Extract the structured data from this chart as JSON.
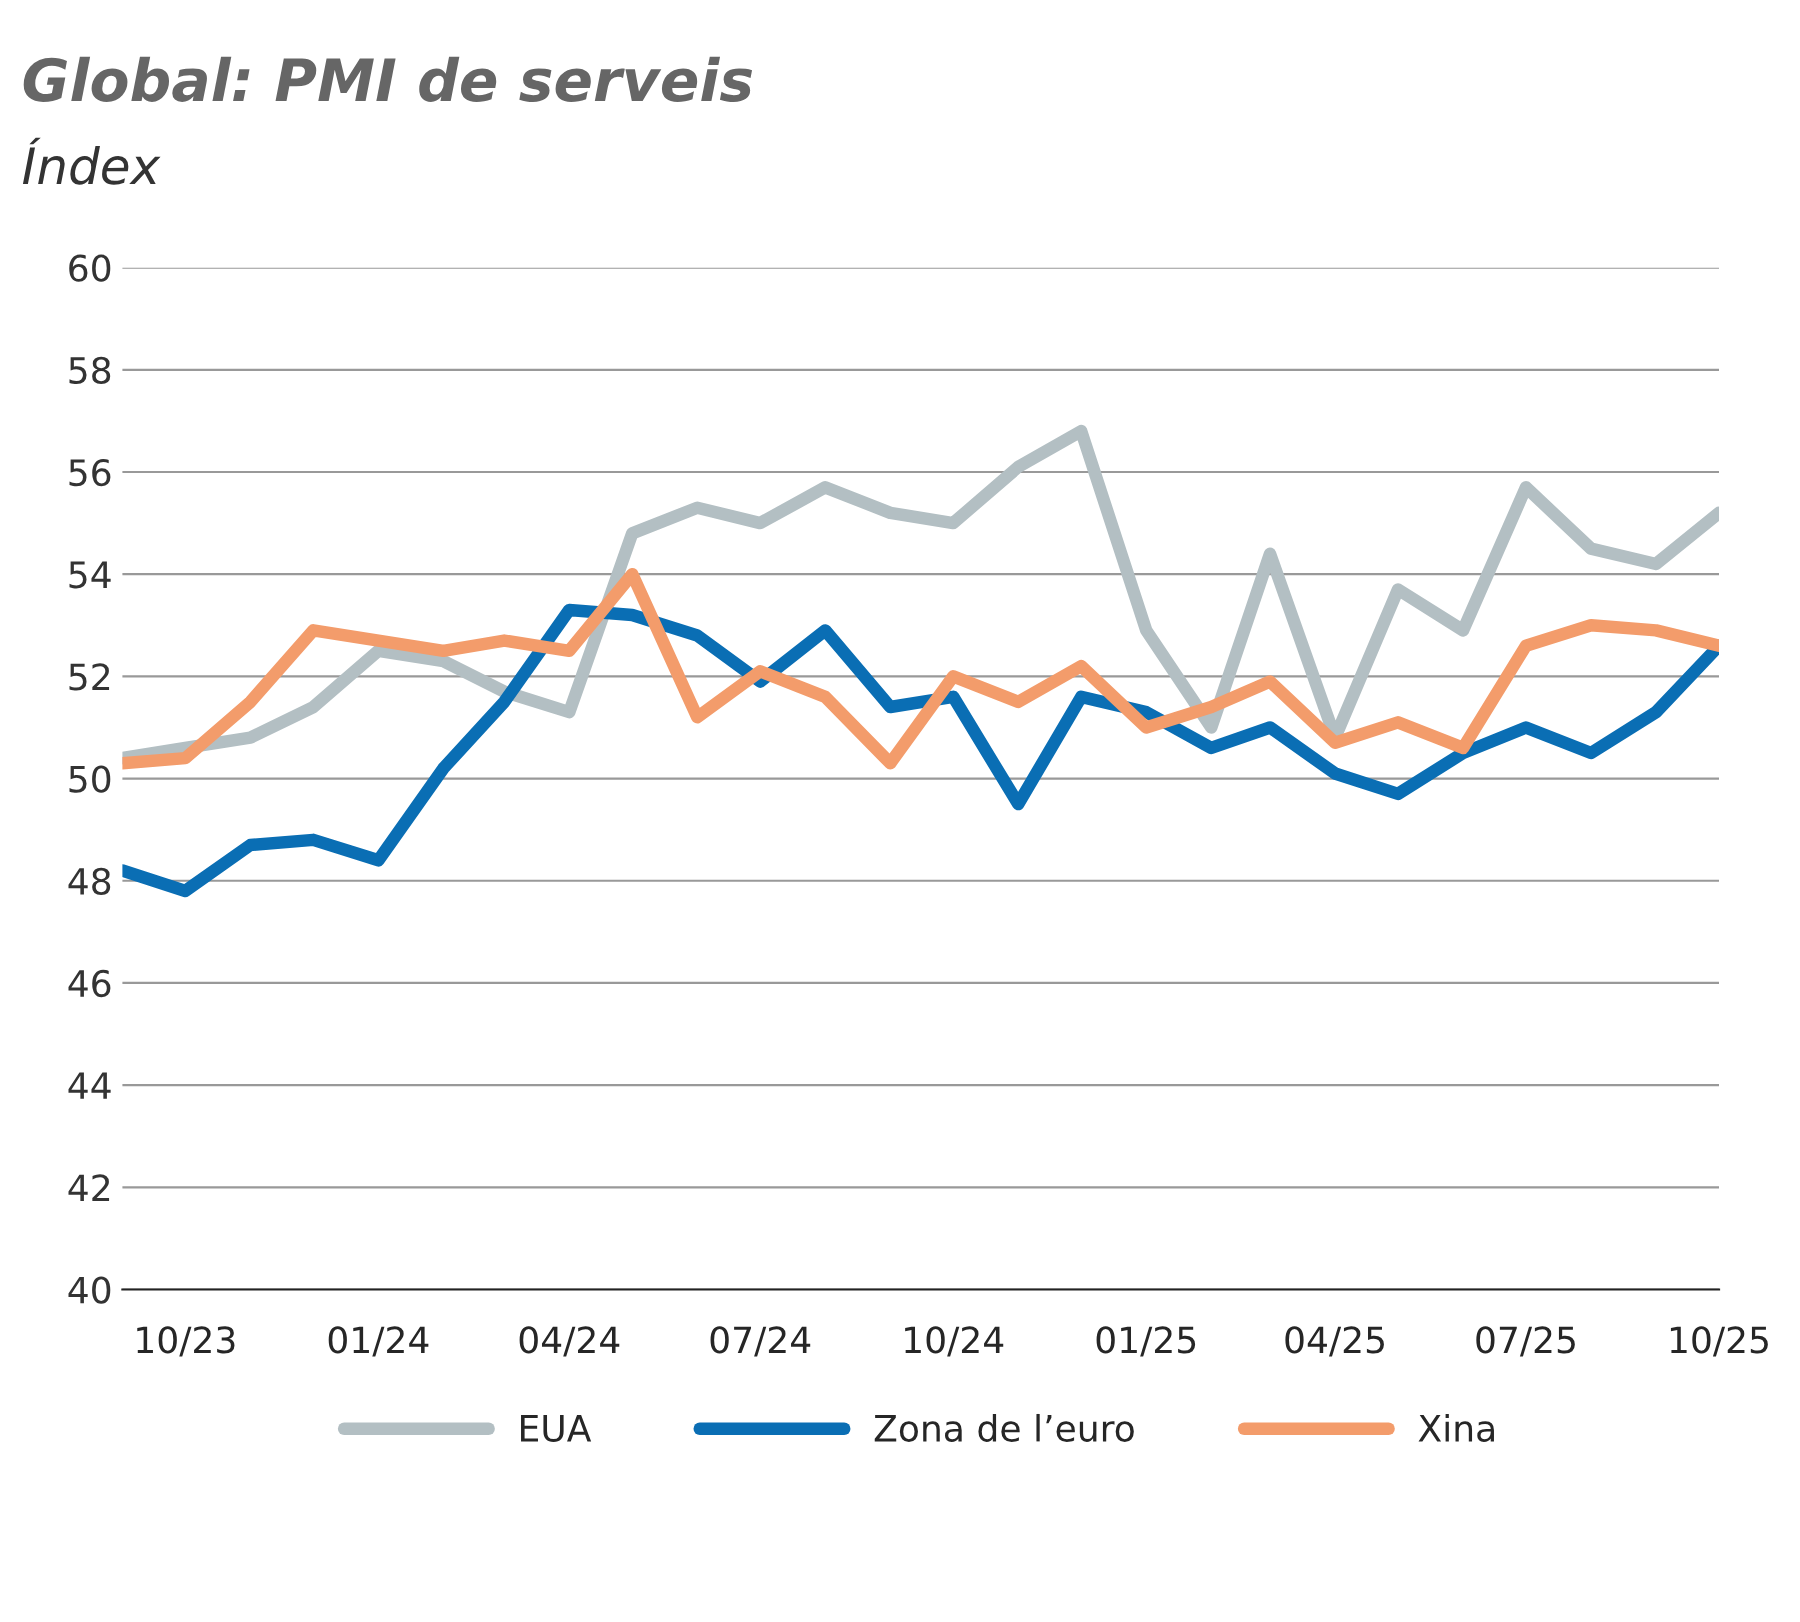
{
  "chart_data": {
    "type": "line",
    "title": "Global: PMI de serveis",
    "subtitle": "Índex",
    "x": [
      "2023-09",
      "2023-10",
      "2023-11",
      "2023-12",
      "2024-01",
      "2024-02",
      "2024-03",
      "2024-04",
      "2024-05",
      "2024-06",
      "2024-07",
      "2024-08",
      "2024-09",
      "2024-10",
      "2024-11",
      "2024-12",
      "2025-01",
      "2025-02",
      "2025-03",
      "2025-04",
      "2025-05",
      "2025-06",
      "2025-07",
      "2025-08",
      "2025-09",
      "2025-10"
    ],
    "series": [
      {
        "name": "EUA",
        "color": "#b3bfc3",
        "values": [
          50.4,
          50.6,
          50.8,
          51.4,
          52.5,
          52.3,
          51.7,
          51.3,
          54.8,
          55.3,
          55.0,
          55.7,
          55.2,
          55.0,
          56.1,
          56.8,
          52.9,
          51.0,
          54.4,
          50.8,
          53.7,
          52.9,
          55.7,
          54.5,
          54.2,
          55.2
        ]
      },
      {
        "name": "Zona de l’euro",
        "color": "#0a6eb4",
        "values": [
          48.2,
          47.8,
          48.7,
          48.8,
          48.4,
          50.2,
          51.5,
          53.3,
          53.2,
          52.8,
          51.9,
          52.9,
          51.4,
          51.6,
          49.5,
          51.6,
          51.3,
          50.6,
          51.0,
          50.1,
          49.7,
          50.5,
          51.0,
          50.5,
          51.3,
          52.6
        ]
      },
      {
        "name": "Xina",
        "color": "#f39c6b",
        "values": [
          50.3,
          50.4,
          51.5,
          52.9,
          52.7,
          52.5,
          52.7,
          52.5,
          54.0,
          51.2,
          52.1,
          51.6,
          50.3,
          52.0,
          51.5,
          52.2,
          51.0,
          51.4,
          51.9,
          50.7,
          51.1,
          50.6,
          52.6,
          53.0,
          52.9,
          52.6
        ]
      }
    ],
    "xlim": [
      "2023-09",
      "2025-10"
    ],
    "xticks": [
      {
        "value": "2023-10",
        "label": "10/23"
      },
      {
        "value": "2024-01",
        "label": "01/24"
      },
      {
        "value": "2024-04",
        "label": "04/24"
      },
      {
        "value": "2024-07",
        "label": "07/24"
      },
      {
        "value": "2024-10",
        "label": "10/24"
      },
      {
        "value": "2025-01",
        "label": "01/25"
      },
      {
        "value": "2025-04",
        "label": "04/25"
      },
      {
        "value": "2025-07",
        "label": "07/25"
      },
      {
        "value": "2025-10",
        "label": "10/25"
      }
    ],
    "ylim": [
      40,
      60
    ],
    "yticks": [
      40,
      42,
      44,
      46,
      48,
      50,
      52,
      54,
      56,
      58,
      60
    ],
    "grid": "y",
    "legend": "bottom",
    "line_style": "solid",
    "marker": "none"
  }
}
